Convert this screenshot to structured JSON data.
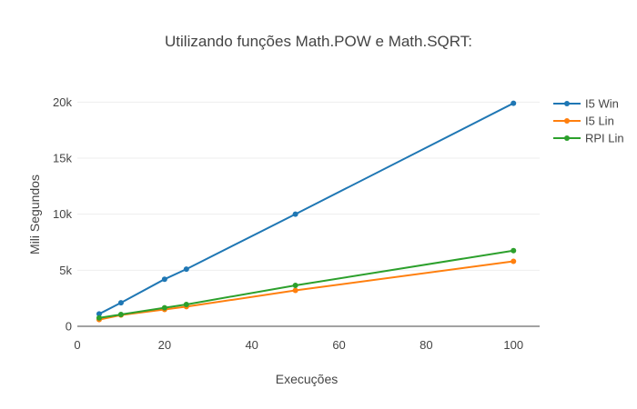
{
  "chart_data": {
    "type": "line",
    "title": "Utilizando funções Math.POW e Math.SQRT:",
    "xlabel": "Execuções",
    "ylabel": "Mili Segundos",
    "xlim": [
      0,
      106
    ],
    "ylim": [
      0,
      21000
    ],
    "x_ticks": [
      0,
      20,
      40,
      60,
      80,
      100
    ],
    "x_tick_labels": [
      "0",
      "20",
      "40",
      "60",
      "80",
      "100"
    ],
    "y_ticks": [
      0,
      5000,
      10000,
      15000,
      20000
    ],
    "y_tick_labels": [
      "0",
      "5k",
      "10k",
      "15k",
      "20k"
    ],
    "grid": true,
    "legend_position": "top-right",
    "series": [
      {
        "name": "I5 Win",
        "color": "#1f77b4",
        "x": [
          5,
          10,
          20,
          25,
          50,
          100
        ],
        "y": [
          1100,
          2100,
          4200,
          5100,
          10000,
          19900
        ]
      },
      {
        "name": "I5 Lin",
        "color": "#ff7f0e",
        "x": [
          5,
          10,
          20,
          25,
          50,
          100
        ],
        "y": [
          600,
          1000,
          1500,
          1750,
          3200,
          5800
        ]
      },
      {
        "name": "RPI Lin",
        "color": "#2ca02c",
        "x": [
          5,
          10,
          20,
          25,
          50,
          100
        ],
        "y": [
          750,
          1050,
          1650,
          1950,
          3650,
          6750
        ]
      }
    ]
  }
}
